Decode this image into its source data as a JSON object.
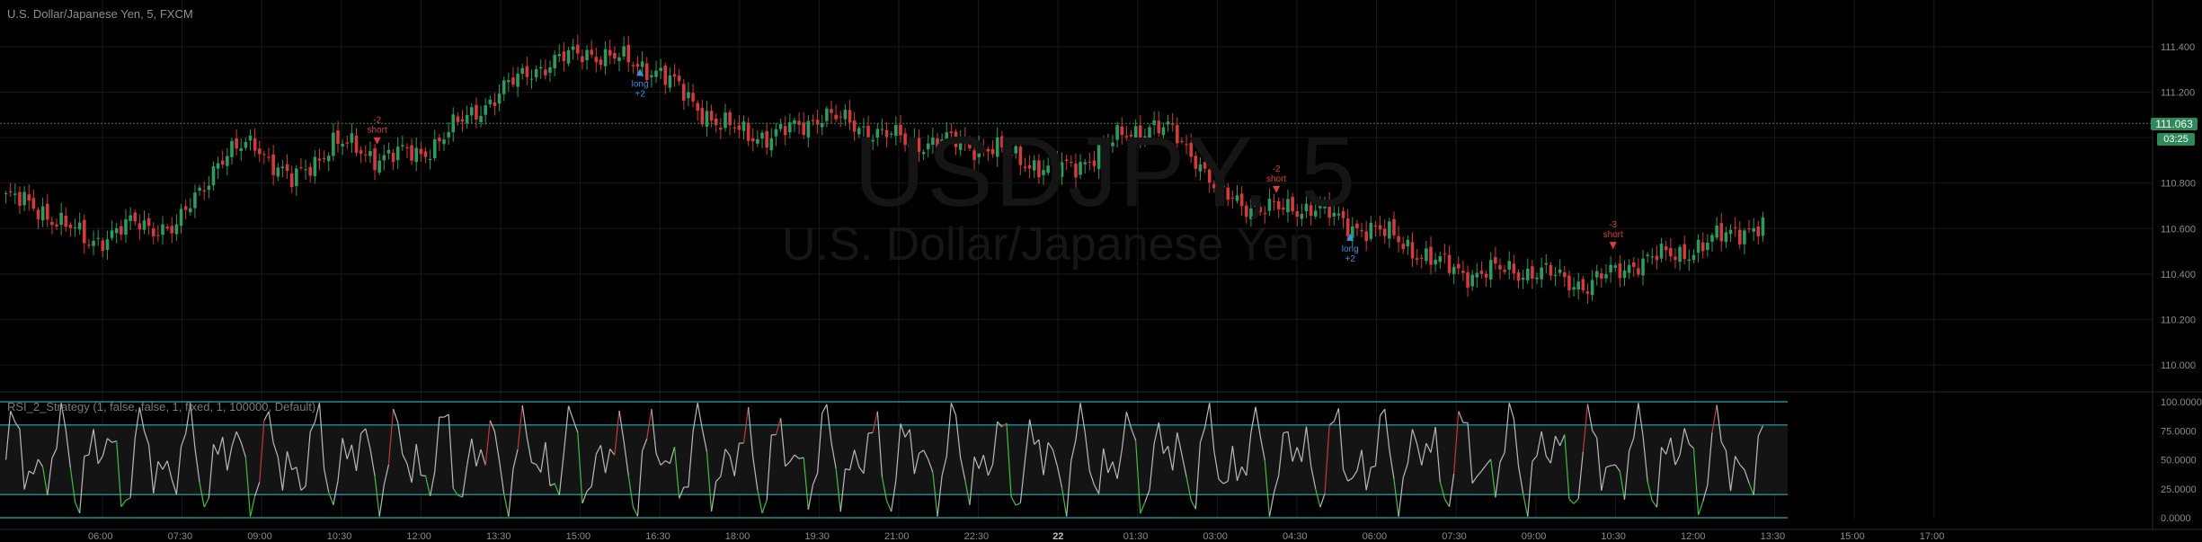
{
  "header": {
    "symbol_title": "U.S. Dollar/Japanese Yen, 5, FXCM"
  },
  "watermark": {
    "ticker": "USDJPY, 5",
    "description": "U.S. Dollar/Japanese Yen"
  },
  "indicator": {
    "label": "RSI_2_Strategy (1, false, false, 1, fixed, 1, 100000, Default)"
  },
  "last_price": {
    "value": "111.063",
    "countdown": "03:25"
  },
  "colors": {
    "up": "#2e9a5e",
    "down": "#d33a3a",
    "rsi_line": "#b9b9b9",
    "rsi_low": "#3fbf3f",
    "rsi_high": "#c23a3a",
    "band": "#2aa7b3",
    "long_marker": "#3b8fe0",
    "short_marker": "#e03b3b"
  },
  "chart_data": [
    {
      "type": "candlestick",
      "title": "U.S. Dollar/Japanese Yen, 5, FXCM",
      "ylim": [
        109.95,
        111.55
      ],
      "y_ticks": [
        "111.400",
        "111.200",
        "111.000",
        "110.800",
        "110.600",
        "110.400",
        "110.200",
        "110.000"
      ],
      "x_ticks": [
        "06:00",
        "07:30",
        "09:00",
        "10:30",
        "12:00",
        "13:30",
        "15:00",
        "16:30",
        "18:00",
        "19:30",
        "21:00",
        "22:30",
        "22",
        "01:30",
        "03:00",
        "04:30",
        "06:00",
        "07:30",
        "09:00",
        "10:30",
        "12:00",
        "13:30",
        "15:00",
        "17:00"
      ],
      "close_path": [
        [
          0,
          110.74
        ],
        [
          8,
          110.68
        ],
        [
          18,
          110.54
        ],
        [
          28,
          110.62
        ],
        [
          37,
          110.6
        ],
        [
          46,
          110.9
        ],
        [
          54,
          110.98
        ],
        [
          62,
          110.8
        ],
        [
          71,
          110.98
        ],
        [
          80,
          110.92
        ],
        [
          90,
          110.93
        ],
        [
          104,
          111.15
        ],
        [
          114,
          111.3
        ],
        [
          126,
          111.38
        ],
        [
          141,
          111.3
        ],
        [
          155,
          111.05
        ],
        [
          166,
          111.0
        ],
        [
          177,
          111.1
        ],
        [
          185,
          111.05
        ],
        [
          196,
          110.98
        ],
        [
          206,
          110.98
        ],
        [
          214,
          110.95
        ],
        [
          221,
          110.9
        ],
        [
          227,
          110.85
        ],
        [
          232,
          110.88
        ],
        [
          238,
          110.95
        ],
        [
          243,
          111.02
        ],
        [
          248,
          111.05
        ],
        [
          253,
          111.02
        ],
        [
          258,
          110.92
        ],
        [
          263,
          110.75
        ],
        [
          270,
          110.7
        ],
        [
          276,
          110.68
        ],
        [
          284,
          110.7
        ],
        [
          290,
          110.62
        ],
        [
          296,
          110.6
        ],
        [
          302,
          110.55
        ],
        [
          310,
          110.45
        ],
        [
          318,
          110.4
        ],
        [
          326,
          110.42
        ],
        [
          334,
          110.4
        ],
        [
          343,
          110.35
        ],
        [
          353,
          110.45
        ],
        [
          360,
          110.48
        ],
        [
          368,
          110.52
        ],
        [
          375,
          110.6
        ]
      ],
      "y_ticks_note": "",
      "last_price": 111.063,
      "markers": [
        {
          "label": "-2",
          "sub": "short",
          "side": "short",
          "x_index": 81
        },
        {
          "label": "-2",
          "sub": "short",
          "side": "short",
          "x_index": 276
        },
        {
          "label": "-3",
          "sub": "short",
          "side": "short",
          "x_index": 349
        },
        {
          "label": "long",
          "sub": "+2",
          "side": "long",
          "x_index": 138
        },
        {
          "label": "long",
          "sub": "+2",
          "side": "long",
          "x_index": 292
        }
      ]
    },
    {
      "type": "line",
      "title": "RSI_2_Strategy (1, false, false, 1, fixed, 1, 100000, Default)",
      "ylim": [
        0,
        100
      ],
      "y_ticks": [
        "100.0000",
        "75.0000",
        "50.0000",
        "25.0000",
        "0.0000"
      ],
      "bands": [
        0,
        20,
        80,
        100
      ]
    }
  ]
}
